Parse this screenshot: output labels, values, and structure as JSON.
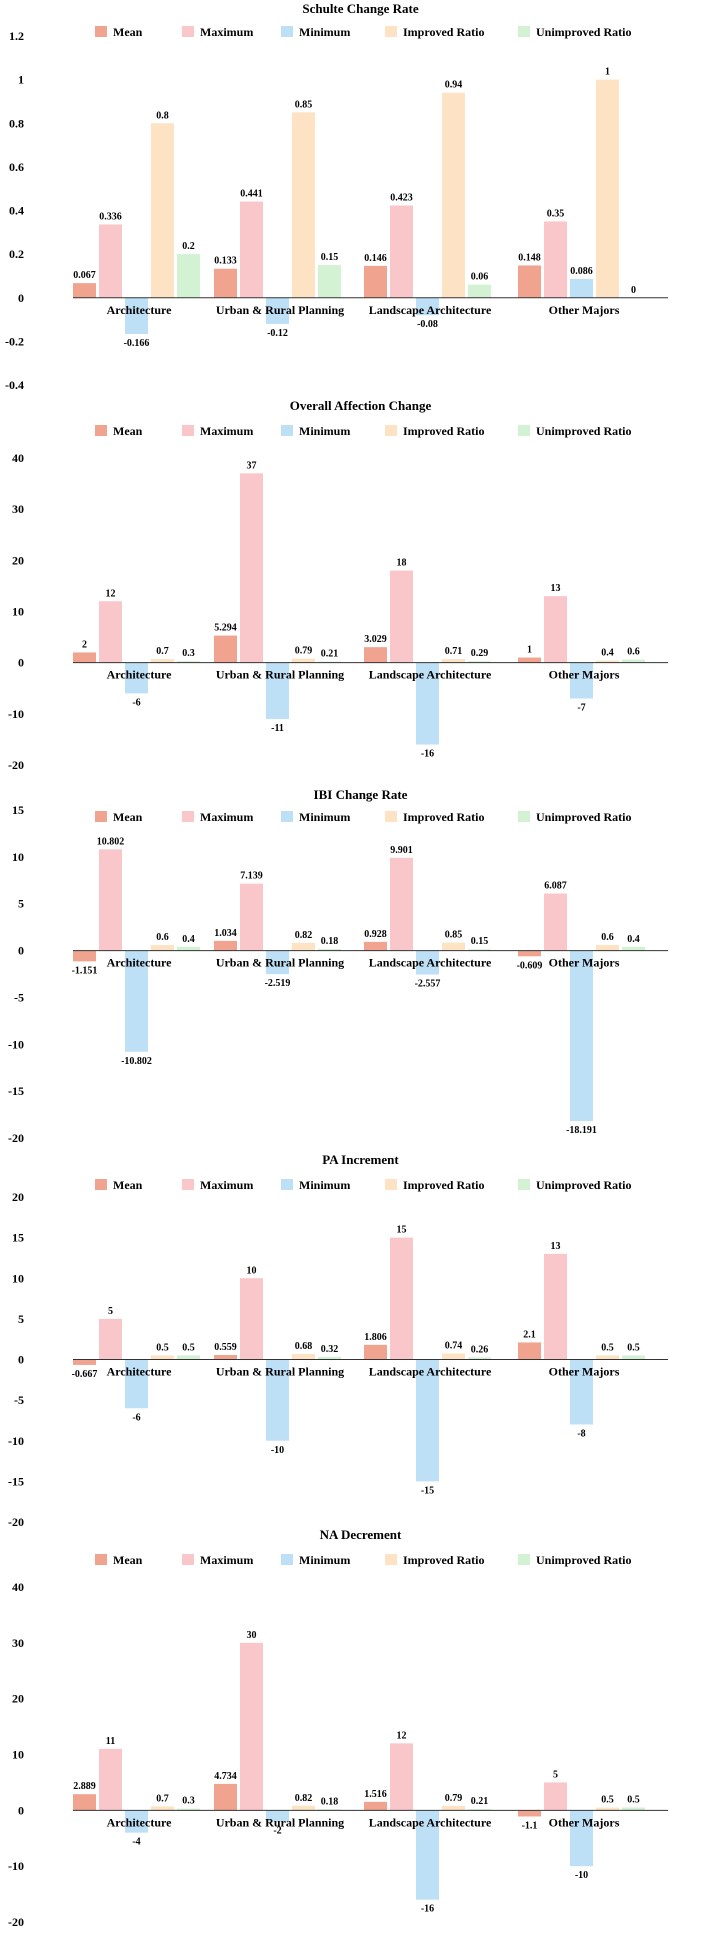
{
  "colors": {
    "Mean": "#f0a38f",
    "Maximum": "#f9c6ca",
    "Minimum": "#bde0f7",
    "Improved Ratio": "#fde3c4",
    "Unimproved Ratio": "#d3f1d3",
    "axis": "#333333",
    "text": "#000000"
  },
  "chart_data": [
    {
      "type": "bar",
      "title": "Schulte Change Rate",
      "legend_position": "top",
      "categories": [
        "Architecture",
        "Urban & Rural Planning",
        "Landscape Architecture",
        "Other Majors"
      ],
      "ylim": [
        -0.4,
        1.2
      ],
      "yticks": [
        -0.4,
        -0.2,
        0,
        0.2,
        0.4,
        0.6,
        0.8,
        1,
        1.2
      ],
      "ytick_labels": [
        "-0.4",
        "-0.2",
        "0",
        "0.2",
        "0.4",
        "0.6",
        "0.8",
        "1",
        "1.2"
      ],
      "series": [
        {
          "name": "Mean",
          "values": [
            0.067,
            0.133,
            0.146,
            0.148
          ],
          "labels": [
            "0.067",
            "0.133",
            "0.146",
            "0.148"
          ]
        },
        {
          "name": "Maximum",
          "values": [
            0.336,
            0.441,
            0.423,
            0.35
          ],
          "labels": [
            "0.336",
            "0.441",
            "0.423",
            "0.35"
          ]
        },
        {
          "name": "Minimum",
          "values": [
            -0.166,
            -0.12,
            -0.08,
            0.086
          ],
          "labels": [
            "-0.166",
            "-0.12",
            "-0.08",
            "0.086"
          ]
        },
        {
          "name": "Improved Ratio",
          "values": [
            0.8,
            0.85,
            0.94,
            1
          ],
          "labels": [
            "0.8",
            "0.85",
            "0.94",
            "1"
          ]
        },
        {
          "name": "Unimproved Ratio",
          "values": [
            0.2,
            0.15,
            0.06,
            0
          ],
          "labels": [
            "0.2",
            "0.15",
            "0.06",
            "0"
          ]
        }
      ]
    },
    {
      "type": "bar",
      "title": "Overall Affection Change",
      "legend_position": "top",
      "categories": [
        "Architecture",
        "Urban & Rural Planning",
        "Landscape Architecture",
        "Other Majors"
      ],
      "ylim": [
        -20,
        40
      ],
      "yticks": [
        -20,
        -10,
        0,
        10,
        20,
        30,
        40
      ],
      "ytick_labels": [
        "-20",
        "-10",
        "0",
        "10",
        "20",
        "30",
        "40"
      ],
      "series": [
        {
          "name": "Mean",
          "values": [
            2,
            5.294,
            3.029,
            1
          ],
          "labels": [
            "2",
            "5.294",
            "3.029",
            "1"
          ]
        },
        {
          "name": "Maximum",
          "values": [
            12,
            37,
            18,
            13
          ],
          "labels": [
            "12",
            "37",
            "18",
            "13"
          ]
        },
        {
          "name": "Minimum",
          "values": [
            -6,
            -11,
            -16,
            -7
          ],
          "labels": [
            "-6",
            "-11",
            "-16",
            "-7"
          ]
        },
        {
          "name": "Improved Ratio",
          "values": [
            0.7,
            0.79,
            0.71,
            0.4
          ],
          "labels": [
            "0.7",
            "0.79",
            "0.71",
            "0.4"
          ]
        },
        {
          "name": "Unimproved Ratio",
          "values": [
            0.3,
            0.21,
            0.29,
            0.6
          ],
          "labels": [
            "0.3",
            "0.21",
            "0.29",
            "0.6"
          ]
        }
      ]
    },
    {
      "type": "bar",
      "title": "IBI Change Rate",
      "legend_position": "top",
      "categories": [
        "Architecture",
        "Urban & Rural Planning",
        "Landscape Architecture",
        "Other Majors"
      ],
      "ylim": [
        -20,
        15
      ],
      "yticks": [
        -20,
        -15,
        -10,
        -5,
        0,
        5,
        10,
        15
      ],
      "ytick_labels": [
        "-20",
        "-15",
        "-10",
        "-5",
        "0",
        "5",
        "10",
        "15"
      ],
      "series": [
        {
          "name": "Mean",
          "values": [
            -1.151,
            1.034,
            0.928,
            -0.609
          ],
          "labels": [
            "-1.151",
            "1.034",
            "0.928",
            "-0.609"
          ]
        },
        {
          "name": "Maximum",
          "values": [
            10.802,
            7.139,
            9.901,
            6.087
          ],
          "labels": [
            "10.802",
            "7.139",
            "9.901",
            "6.087"
          ]
        },
        {
          "name": "Minimum",
          "values": [
            -10.802,
            -2.519,
            -2.557,
            -18.191
          ],
          "labels": [
            "-10.802",
            "-2.519",
            "-2.557",
            "-18.191"
          ]
        },
        {
          "name": "Improved Ratio",
          "values": [
            0.6,
            0.82,
            0.85,
            0.6
          ],
          "labels": [
            "0.6",
            "0.82",
            "0.85",
            "0.6"
          ]
        },
        {
          "name": "Unimproved Ratio",
          "values": [
            0.4,
            0.18,
            0.15,
            0.4
          ],
          "labels": [
            "0.4",
            "0.18",
            "0.15",
            "0.4"
          ]
        }
      ]
    },
    {
      "type": "bar",
      "title": "PA Increment",
      "legend_position": "top",
      "categories": [
        "Architecture",
        "Urban & Rural Planning",
        "Landscape Architecture",
        "Other Majors"
      ],
      "ylim": [
        -20,
        20
      ],
      "yticks": [
        -20,
        -15,
        -10,
        -5,
        0,
        5,
        10,
        15,
        20
      ],
      "ytick_labels": [
        "-20",
        "-15",
        "-10",
        "-5",
        "0",
        "5",
        "10",
        "15",
        "20"
      ],
      "series": [
        {
          "name": "Mean",
          "values": [
            -0.667,
            0.559,
            1.806,
            2.1
          ],
          "labels": [
            "-0.667",
            "0.559",
            "1.806",
            "2.1"
          ]
        },
        {
          "name": "Maximum",
          "values": [
            5,
            10,
            15,
            13
          ],
          "labels": [
            "5",
            "10",
            "15",
            "13"
          ]
        },
        {
          "name": "Minimum",
          "values": [
            -6,
            -10,
            -15,
            -8
          ],
          "labels": [
            "-6",
            "-10",
            "-15",
            "-8"
          ]
        },
        {
          "name": "Improved Ratio",
          "values": [
            0.5,
            0.68,
            0.74,
            0.5
          ],
          "labels": [
            "0.5",
            "0.68",
            "0.74",
            "0.5"
          ]
        },
        {
          "name": "Unimproved Ratio",
          "values": [
            0.5,
            0.32,
            0.26,
            0.5
          ],
          "labels": [
            "0.5",
            "0.32",
            "0.26",
            "0.5"
          ]
        }
      ]
    },
    {
      "type": "bar",
      "title": "NA Decrement",
      "legend_position": "top",
      "categories": [
        "Architecture",
        "Urban & Rural Planning",
        "Landscape Architecture",
        "Other Majors"
      ],
      "ylim": [
        -20,
        40
      ],
      "yticks": [
        -20,
        -10,
        0,
        10,
        20,
        30,
        40
      ],
      "ytick_labels": [
        "-20",
        "-10",
        "0",
        "10",
        "20",
        "30",
        "40"
      ],
      "series": [
        {
          "name": "Mean",
          "values": [
            2.889,
            4.734,
            1.516,
            -1.1
          ],
          "labels": [
            "2.889",
            "4.734",
            "1.516",
            "-1.1"
          ]
        },
        {
          "name": "Maximum",
          "values": [
            11,
            30,
            12,
            5
          ],
          "labels": [
            "11",
            "30",
            "12",
            "5"
          ]
        },
        {
          "name": "Minimum",
          "values": [
            -4,
            -2,
            -16,
            -10
          ],
          "labels": [
            "-4",
            "-2",
            "-16",
            "-10"
          ]
        },
        {
          "name": "Improved Ratio",
          "values": [
            0.7,
            0.82,
            0.79,
            0.5
          ],
          "labels": [
            "0.7",
            "0.82",
            "0.79",
            "0.5"
          ]
        },
        {
          "name": "Unimproved Ratio",
          "values": [
            0.3,
            0.18,
            0.21,
            0.5
          ],
          "labels": [
            "0.3",
            "0.18",
            "0.21",
            "0.5"
          ]
        }
      ]
    }
  ]
}
